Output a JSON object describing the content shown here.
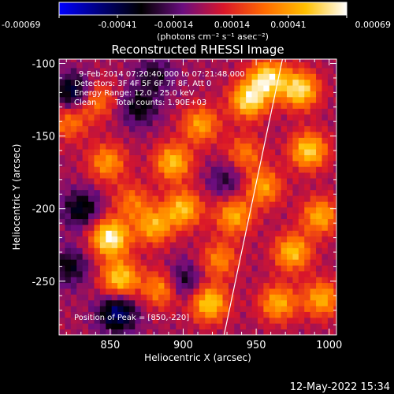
{
  "chart_data": {
    "type": "heatmap",
    "title": "Reconstructed RHESSI Image",
    "xlabel": "Heliocentric X (arcsec)",
    "ylabel": "Heliocentric Y (arcsec)",
    "xlim": [
      815,
      1005
    ],
    "ylim": [
      -287,
      -97
    ],
    "x_ticks": [
      850,
      900,
      950,
      1000
    ],
    "y_ticks": [
      -100,
      -150,
      -200,
      -250
    ],
    "colorbar": {
      "min": -0.00069,
      "max": 0.00069,
      "tick_values": [
        -0.00069,
        -0.00041,
        -0.00014,
        0.00014,
        0.00041,
        0.00069
      ],
      "tick_labels": [
        "-0.00069",
        "-0.00041",
        "-0.00014",
        "0.00014",
        "0.00041",
        "0.00069"
      ],
      "units_label": "(photons cm⁻² s⁻¹ asec⁻²)",
      "colors": [
        "#0000ff",
        "#00007a",
        "#000000",
        "#6a0d7f",
        "#d9162a",
        "#ff6a00",
        "#ffc000",
        "#ffffff"
      ]
    },
    "annotations": {
      "time_range": "9-Feb-2014 07:20:40.000 to 07:21:48.000",
      "detectors": "Detectors: 3F 4F 5F 6F 7F 8F, Att 0",
      "energy_range": "Energy Range: 12.0 - 25.0 keV",
      "method": "Clean",
      "total_counts": "Total counts: 1.90E+03",
      "peak": "Position of Peak = [850,-220]"
    },
    "limb_line": {
      "x": [
        928,
        968
      ],
      "y": [
        -287,
        -97
      ]
    },
    "hot_spots": [
      {
        "x": 850,
        "y": -220,
        "value": 0.00069
      },
      {
        "x": 857,
        "y": -248,
        "value": 0.00055
      },
      {
        "x": 848,
        "y": -168,
        "value": 0.0004
      },
      {
        "x": 880,
        "y": -212,
        "value": 0.00045
      },
      {
        "x": 900,
        "y": -200,
        "value": 0.0005
      },
      {
        "x": 893,
        "y": -168,
        "value": 0.0005
      },
      {
        "x": 912,
        "y": -142,
        "value": 0.00042
      },
      {
        "x": 918,
        "y": -265,
        "value": 0.00055
      },
      {
        "x": 945,
        "y": -125,
        "value": 0.0006
      },
      {
        "x": 935,
        "y": -205,
        "value": 0.00045
      },
      {
        "x": 958,
        "y": -110,
        "value": 0.0006
      },
      {
        "x": 955,
        "y": -185,
        "value": 0.00042
      },
      {
        "x": 965,
        "y": -265,
        "value": 0.00045
      },
      {
        "x": 980,
        "y": -118,
        "value": 0.0006
      },
      {
        "x": 986,
        "y": -160,
        "value": 0.00055
      },
      {
        "x": 975,
        "y": -230,
        "value": 0.0005
      },
      {
        "x": 994,
        "y": -205,
        "value": 0.00045
      },
      {
        "x": 995,
        "y": -262,
        "value": 0.00045
      },
      {
        "x": 822,
        "y": -140,
        "value": 0.00032
      },
      {
        "x": 840,
        "y": -125,
        "value": 0.00035
      },
      {
        "x": 865,
        "y": -195,
        "value": 0.0003
      },
      {
        "x": 885,
        "y": -255,
        "value": 0.0004
      },
      {
        "x": 925,
        "y": -235,
        "value": 0.00035
      },
      {
        "x": 942,
        "y": -162,
        "value": 0.00032
      }
    ],
    "cold_spots": [
      {
        "x": 825,
        "y": -120,
        "value": -0.00045
      },
      {
        "x": 830,
        "y": -200,
        "value": -0.00035
      },
      {
        "x": 855,
        "y": -272,
        "value": -0.0005
      },
      {
        "x": 822,
        "y": -240,
        "value": -0.0003
      },
      {
        "x": 870,
        "y": -130,
        "value": -0.0003
      },
      {
        "x": 900,
        "y": -250,
        "value": -0.0003
      },
      {
        "x": 880,
        "y": -108,
        "value": -0.00025
      },
      {
        "x": 930,
        "y": -180,
        "value": -0.00022
      }
    ]
  },
  "timestamp": "12-May-2022 15:34"
}
